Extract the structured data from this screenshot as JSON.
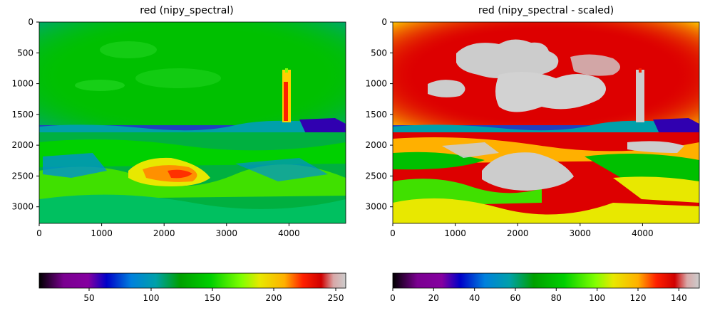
{
  "panels": [
    {
      "title": "red (nipy_spectral)",
      "x_ticks": [
        "0",
        "1000",
        "2000",
        "3000",
        "4000"
      ],
      "y_ticks": [
        "0",
        "500",
        "1000",
        "1500",
        "2000",
        "2500",
        "3000"
      ],
      "colorbar_ticks": [
        "50",
        "100",
        "150",
        "200",
        "250"
      ]
    },
    {
      "title": "red (nipy_spectral - scaled)",
      "x_ticks": [
        "0",
        "1000",
        "2000",
        "3000",
        "4000"
      ],
      "y_ticks": [
        "0",
        "500",
        "1000",
        "1500",
        "2000",
        "2500",
        "3000"
      ],
      "colorbar_ticks": [
        "0",
        "20",
        "40",
        "60",
        "80",
        "100",
        "120",
        "140"
      ]
    }
  ],
  "colors": {
    "sky_left": "#00c000",
    "sky_right": "#dd0000",
    "cloud_right": "#cccccc"
  }
}
